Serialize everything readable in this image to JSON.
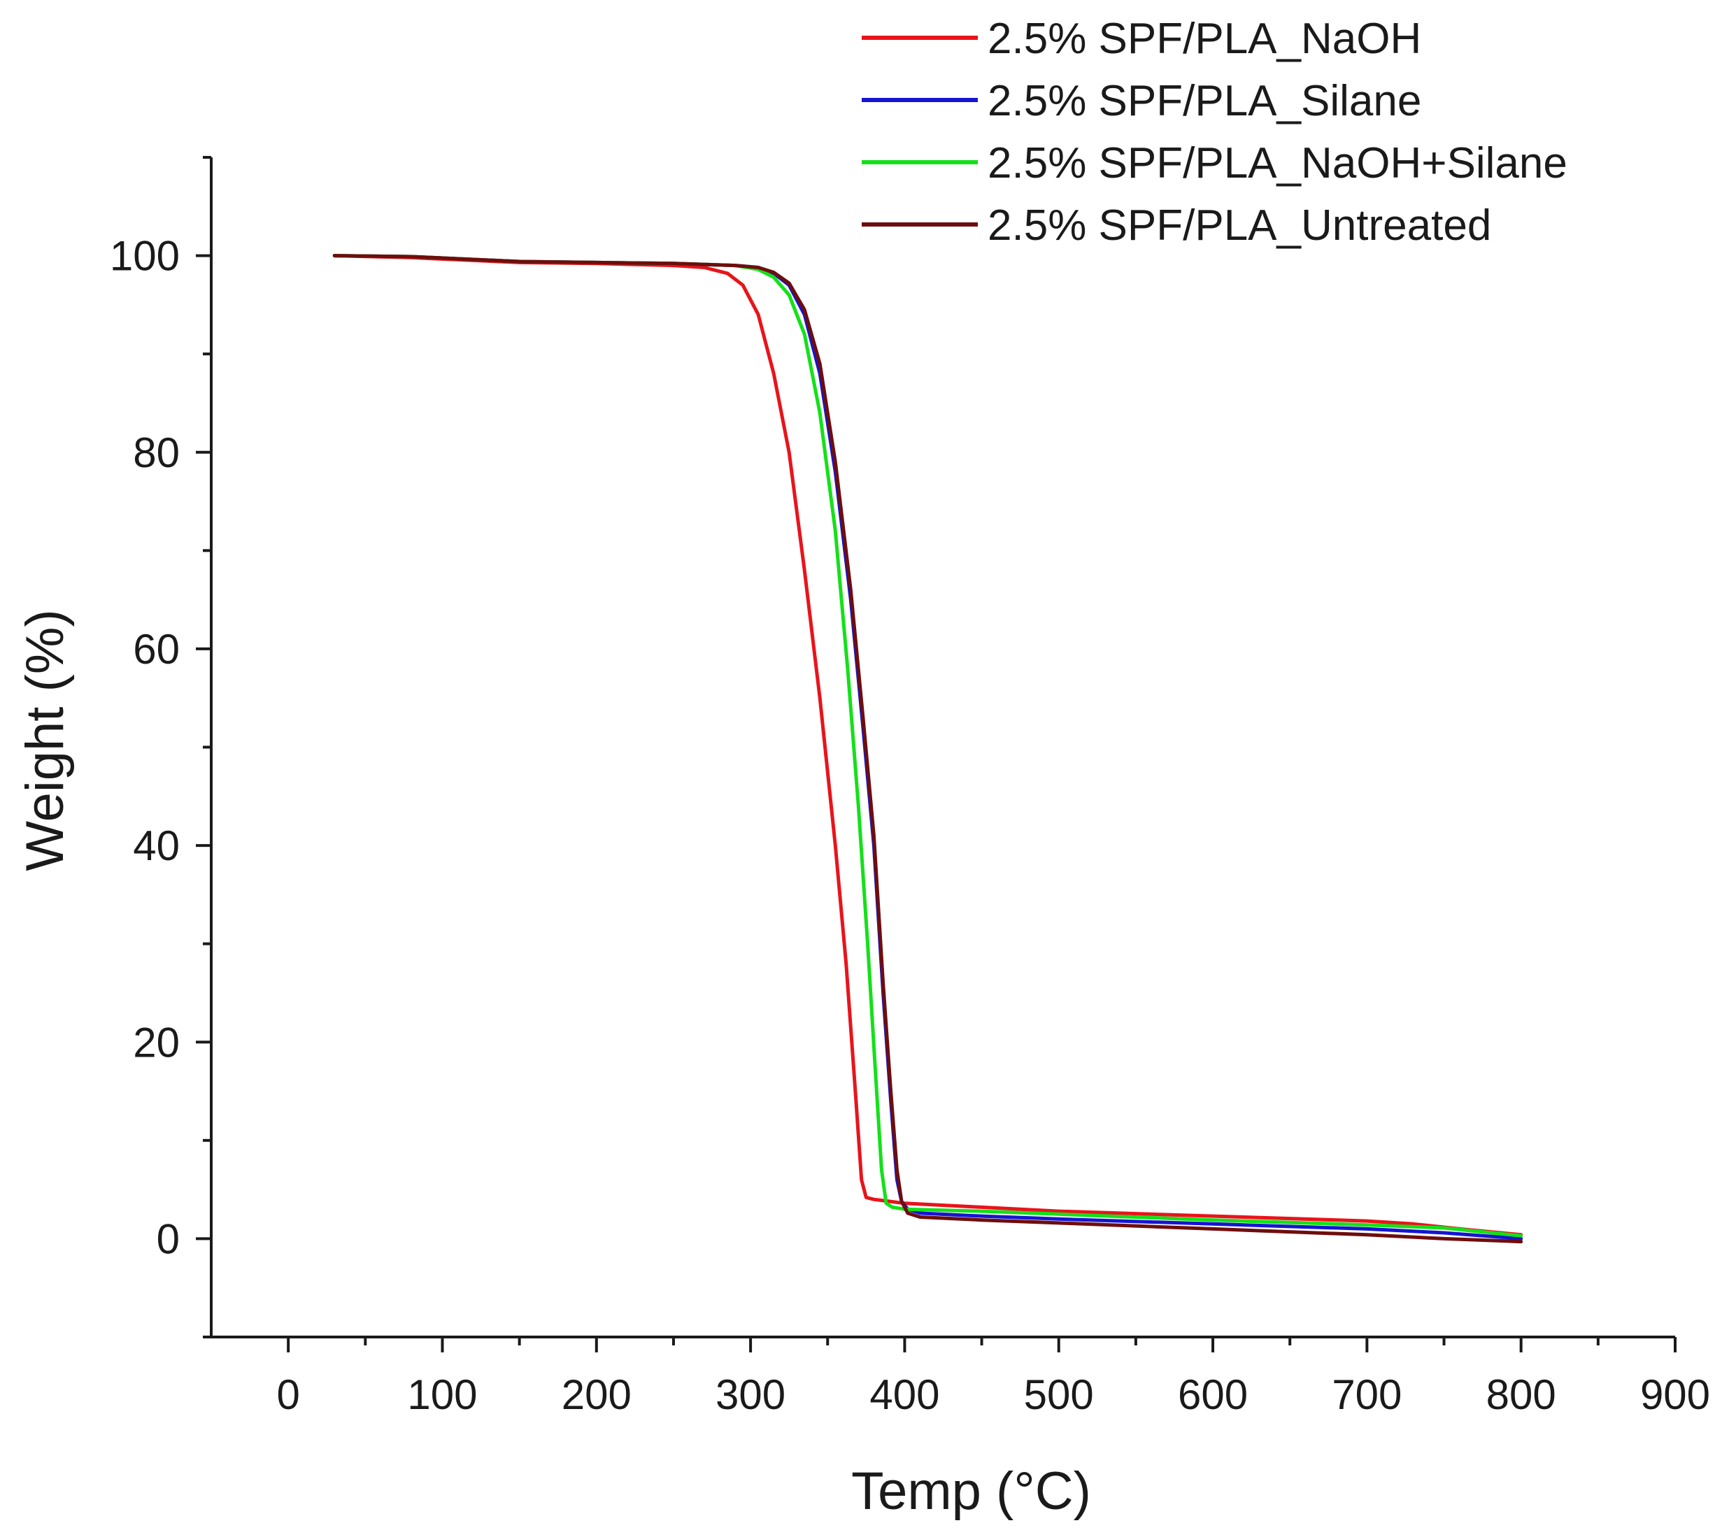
{
  "chart_data": {
    "type": "line",
    "title": "",
    "xlabel": "Temp (°C)",
    "ylabel": "Weight (%)",
    "xlim": [
      -50,
      900
    ],
    "ylim": [
      -10,
      110
    ],
    "x_ticks": [
      0,
      100,
      200,
      300,
      400,
      500,
      600,
      700,
      800,
      900
    ],
    "x_minor_step": 50,
    "y_ticks": [
      0,
      20,
      40,
      60,
      80,
      100
    ],
    "y_minor_step": 10,
    "x_tick_labels": [
      "0",
      "100",
      "200",
      "300",
      "400",
      "500",
      "600",
      "700",
      "800",
      "900"
    ],
    "y_tick_labels": [
      "0",
      "20",
      "40",
      "60",
      "80",
      "100"
    ],
    "legend_position": "top-right",
    "grid": false,
    "series": [
      {
        "name": "2.5% SPF/PLA_NaOH",
        "color": "#e8141b",
        "points": [
          [
            30,
            100
          ],
          [
            80,
            99.8
          ],
          [
            150,
            99.3
          ],
          [
            200,
            99.2
          ],
          [
            250,
            99.0
          ],
          [
            270,
            98.8
          ],
          [
            285,
            98.2
          ],
          [
            295,
            97
          ],
          [
            305,
            94
          ],
          [
            315,
            88
          ],
          [
            325,
            80
          ],
          [
            335,
            68
          ],
          [
            345,
            55
          ],
          [
            355,
            40
          ],
          [
            362,
            28
          ],
          [
            368,
            15
          ],
          [
            372,
            6
          ],
          [
            375,
            4.2
          ],
          [
            380,
            4
          ],
          [
            390,
            3.8
          ],
          [
            400,
            3.6
          ],
          [
            450,
            3.2
          ],
          [
            500,
            2.8
          ],
          [
            600,
            2.3
          ],
          [
            700,
            1.8
          ],
          [
            730,
            1.5
          ],
          [
            760,
            1.0
          ],
          [
            800,
            0.4
          ]
        ]
      },
      {
        "name": "2.5% SPF/PLA_Silane",
        "color": "#1515d0",
        "points": [
          [
            30,
            100
          ],
          [
            80,
            99.9
          ],
          [
            150,
            99.4
          ],
          [
            200,
            99.3
          ],
          [
            250,
            99.2
          ],
          [
            290,
            99.0
          ],
          [
            305,
            98.8
          ],
          [
            315,
            98.2
          ],
          [
            325,
            97
          ],
          [
            335,
            94
          ],
          [
            345,
            88
          ],
          [
            355,
            78
          ],
          [
            365,
            65
          ],
          [
            373,
            52
          ],
          [
            380,
            40
          ],
          [
            386,
            25
          ],
          [
            391,
            14
          ],
          [
            395,
            6
          ],
          [
            398,
            3.8
          ],
          [
            402,
            3
          ],
          [
            410,
            2.6
          ],
          [
            450,
            2.3
          ],
          [
            500,
            2.0
          ],
          [
            600,
            1.5
          ],
          [
            700,
            1.0
          ],
          [
            750,
            0.6
          ],
          [
            800,
            0
          ]
        ]
      },
      {
        "name": "2.5% SPF/PLA_NaOH+Silane",
        "color": "#14e01a",
        "points": [
          [
            30,
            100
          ],
          [
            80,
            99.9
          ],
          [
            150,
            99.4
          ],
          [
            200,
            99.3
          ],
          [
            250,
            99.2
          ],
          [
            290,
            99.0
          ],
          [
            305,
            98.6
          ],
          [
            315,
            97.8
          ],
          [
            325,
            96
          ],
          [
            335,
            92
          ],
          [
            345,
            84
          ],
          [
            355,
            72
          ],
          [
            363,
            58
          ],
          [
            370,
            44
          ],
          [
            376,
            30
          ],
          [
            381,
            17
          ],
          [
            385,
            7
          ],
          [
            388,
            3.6
          ],
          [
            392,
            3.2
          ],
          [
            400,
            3.0
          ],
          [
            450,
            2.8
          ],
          [
            500,
            2.5
          ],
          [
            600,
            1.9
          ],
          [
            700,
            1.4
          ],
          [
            750,
            1.1
          ],
          [
            800,
            0.3
          ]
        ]
      },
      {
        "name": "2.5% SPF/PLA_Untreated",
        "color": "#6e0d0d",
        "points": [
          [
            30,
            100
          ],
          [
            80,
            99.9
          ],
          [
            150,
            99.4
          ],
          [
            200,
            99.3
          ],
          [
            250,
            99.2
          ],
          [
            290,
            99.0
          ],
          [
            305,
            98.8
          ],
          [
            315,
            98.3
          ],
          [
            325,
            97.2
          ],
          [
            335,
            94.5
          ],
          [
            345,
            89
          ],
          [
            355,
            79
          ],
          [
            365,
            66
          ],
          [
            373,
            53
          ],
          [
            380,
            41
          ],
          [
            386,
            26
          ],
          [
            391,
            15
          ],
          [
            395,
            7
          ],
          [
            398,
            3.8
          ],
          [
            402,
            2.6
          ],
          [
            410,
            2.2
          ],
          [
            450,
            1.9
          ],
          [
            500,
            1.6
          ],
          [
            600,
            1.0
          ],
          [
            700,
            0.4
          ],
          [
            750,
            0
          ],
          [
            800,
            -0.3
          ]
        ]
      }
    ]
  }
}
